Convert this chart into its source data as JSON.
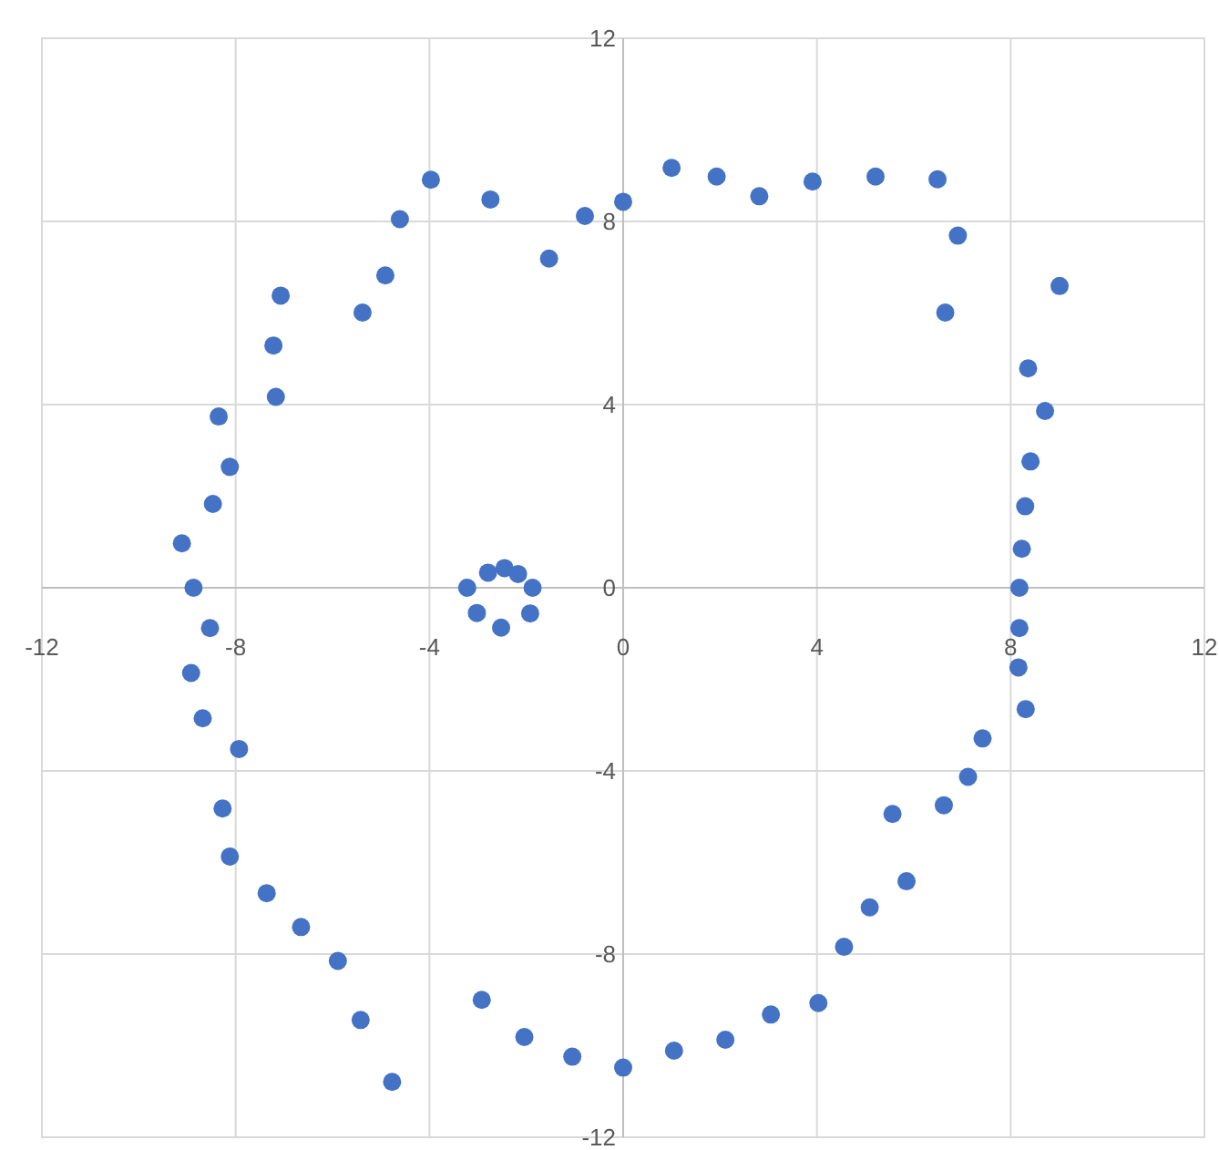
{
  "chart_data": {
    "type": "scatter",
    "color": "#4472c4",
    "marker": "circle",
    "grid": true,
    "xlim": [
      -12,
      12
    ],
    "ylim": [
      -12,
      12
    ],
    "xticks": [
      -12,
      -8,
      -4,
      0,
      4,
      8,
      12
    ],
    "yticks": [
      -12,
      -8,
      -4,
      0,
      4,
      8,
      12
    ],
    "x": [
      -3.97,
      -2.74,
      -4.61,
      -0.79,
      0,
      -1.53,
      -4.91,
      -5.38,
      -7.07,
      -7.22,
      -7.17,
      -8.35,
      -8.12,
      -8.47,
      -9.11,
      -8.87,
      -8.53,
      -8.92,
      -8.68,
      -7.93,
      -8.27,
      -8.12,
      -7.36,
      -6.65,
      -5.89,
      -5.42,
      -4.77,
      -2.92,
      -2.04,
      -1.05,
      0,
      1.05,
      2.11,
      3.05,
      4.03,
      4.56,
      5.09,
      5.85,
      5.56,
      6.62,
      7.12,
      7.42,
      8.31,
      8.16,
      8.18,
      8.18,
      8.23,
      8.3,
      8.41,
      8.71,
      8.36,
      9.01,
      6.65,
      6.91,
      6.49,
      5.21,
      3.91,
      2.81,
      1.93,
      1.0,
      -3.22,
      -2.79,
      -2.45,
      -2.17,
      -1.87,
      -3.02,
      -2.52,
      -1.92
    ],
    "values": [
      8.91,
      8.48,
      8.05,
      8.12,
      8.43,
      7.19,
      6.82,
      6.01,
      6.38,
      5.29,
      4.17,
      3.74,
      2.64,
      1.83,
      0.97,
      0,
      -0.88,
      -1.86,
      -2.85,
      -3.52,
      -4.82,
      -5.87,
      -6.67,
      -7.41,
      -8.15,
      -9.44,
      -10.79,
      -9.0,
      -9.81,
      -10.24,
      -10.48,
      -10.11,
      -9.87,
      -9.32,
      -9.07,
      -7.84,
      -6.98,
      -6.41,
      -4.94,
      -4.75,
      -4.13,
      -3.29,
      -2.65,
      -1.74,
      -0.88,
      0,
      0.85,
      1.78,
      2.76,
      3.86,
      4.79,
      6.59,
      6.01,
      7.69,
      8.92,
      8.98,
      8.87,
      8.55,
      8.98,
      9.17,
      0,
      0.33,
      0.43,
      0.3,
      0,
      -0.55,
      -0.87,
      -0.56
    ]
  }
}
